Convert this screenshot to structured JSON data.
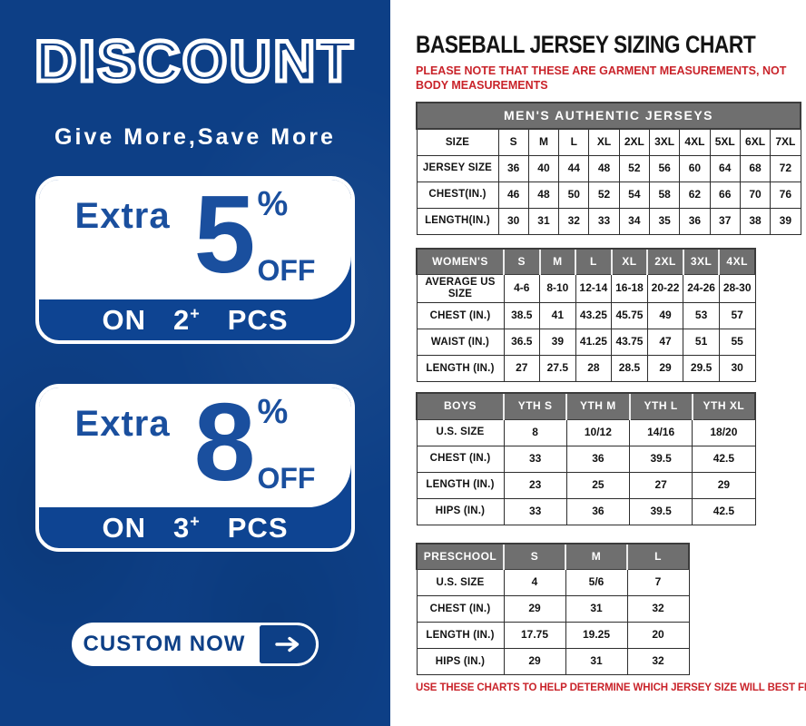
{
  "promo": {
    "title": "DISCOUNT",
    "tagline": "Give More,Save More",
    "offers": [
      {
        "prefix": "Extra",
        "percent": "5",
        "percent_sign": "%",
        "off_label": "OFF",
        "on_label": "ON",
        "qty": "2",
        "plus": "+",
        "pcs_label": "PCS"
      },
      {
        "prefix": "Extra",
        "percent": "8",
        "percent_sign": "%",
        "off_label": "OFF",
        "on_label": "ON",
        "qty": "3",
        "plus": "+",
        "pcs_label": "PCS"
      }
    ],
    "cta": {
      "label": "CUSTOM NOW",
      "arrow": "right-arrow"
    }
  },
  "sizing": {
    "title": "BASEBALL JERSEY SIZING CHART",
    "note_top": "PLEASE NOTE THAT THESE ARE GARMENT MEASUREMENTS, NOT BODY MEASUREMENTS",
    "note_bottom": "USE THESE CHARTS TO HELP DETERMINE WHICH JERSEY SIZE WILL BEST FIT YOU.",
    "tables": [
      {
        "id": "mens",
        "banner": "MEN'S AUTHENTIC JERSEYS",
        "columns": [
          "SIZE",
          "S",
          "M",
          "L",
          "XL",
          "2XL",
          "3XL",
          "4XL",
          "5XL",
          "6XL",
          "7XL"
        ],
        "rows": [
          [
            "JERSEY SIZE",
            "36",
            "40",
            "44",
            "48",
            "52",
            "56",
            "60",
            "64",
            "68",
            "72"
          ],
          [
            "CHEST(IN.)",
            "46",
            "48",
            "50",
            "52",
            "54",
            "58",
            "62",
            "66",
            "70",
            "76"
          ],
          [
            "LENGTH(IN.)",
            "30",
            "31",
            "32",
            "33",
            "34",
            "35",
            "36",
            "37",
            "38",
            "39"
          ]
        ]
      },
      {
        "id": "womens",
        "banner": null,
        "columns": [
          "WOMEN'S",
          "S",
          "M",
          "L",
          "XL",
          "2XL",
          "3XL",
          "4XL"
        ],
        "rows": [
          [
            "AVERAGE US SIZE",
            "4-6",
            "8-10",
            "12-14",
            "16-18",
            "20-22",
            "24-26",
            "28-30"
          ],
          [
            "CHEST (IN.)",
            "38.5",
            "41",
            "43.25",
            "45.75",
            "49",
            "53",
            "57"
          ],
          [
            "WAIST (IN.)",
            "36.5",
            "39",
            "41.25",
            "43.75",
            "47",
            "51",
            "55"
          ],
          [
            "LENGTH (IN.)",
            "27",
            "27.5",
            "28",
            "28.5",
            "29",
            "29.5",
            "30"
          ]
        ]
      },
      {
        "id": "boys",
        "banner": null,
        "columns": [
          "BOYS",
          "YTH S",
          "YTH M",
          "YTH L",
          "YTH XL"
        ],
        "rows": [
          [
            "U.S. SIZE",
            "8",
            "10/12",
            "14/16",
            "18/20"
          ],
          [
            "CHEST (IN.)",
            "33",
            "36",
            "39.5",
            "42.5"
          ],
          [
            "LENGTH (IN.)",
            "23",
            "25",
            "27",
            "29"
          ],
          [
            "HIPS (IN.)",
            "33",
            "36",
            "39.5",
            "42.5"
          ]
        ]
      },
      {
        "id": "preschool",
        "banner": null,
        "columns": [
          "PRESCHOOL",
          "S",
          "M",
          "L"
        ],
        "rows": [
          [
            "U.S. SIZE",
            "4",
            "5/6",
            "7"
          ],
          [
            "CHEST (IN.)",
            "29",
            "31",
            "32"
          ],
          [
            "LENGTH (IN.)",
            "17.75",
            "19.25",
            "20"
          ],
          [
            "HIPS (IN.)",
            "29",
            "31",
            "32"
          ]
        ]
      }
    ]
  },
  "colors": {
    "panel_blue": "#0d3f86",
    "accent_text_blue": "#1a4f9e",
    "header_gray": "#6f6f6f",
    "note_red": "#c9232a",
    "white": "#ffffff"
  }
}
